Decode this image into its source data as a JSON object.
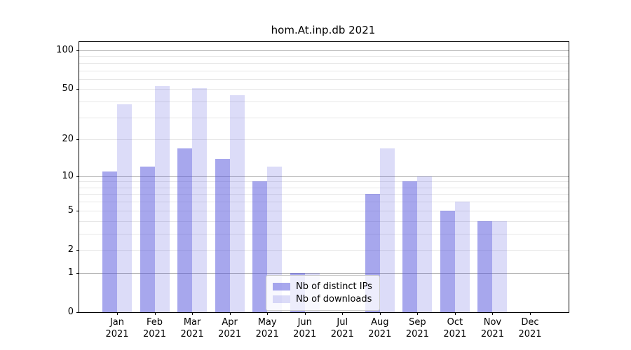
{
  "title": "hom.At.inp.db 2021",
  "chart_data": {
    "type": "bar",
    "title": "hom.At.inp.db 2021",
    "categories": [
      "Jan",
      "Feb",
      "Mar",
      "Apr",
      "May",
      "Jun",
      "Jul",
      "Aug",
      "Sep",
      "Oct",
      "Nov",
      "Dec"
    ],
    "year": "2021",
    "series": [
      {
        "name": "Nb of distinct IPs",
        "color": "rgba(80,80,220,0.5)",
        "values": [
          11,
          12,
          17,
          14,
          9,
          1,
          0,
          7,
          9,
          5,
          4,
          0
        ]
      },
      {
        "name": "Nb of downloads",
        "color": "rgba(80,80,220,0.2)",
        "values": [
          38,
          53,
          51,
          45,
          12,
          1,
          0,
          17,
          10,
          6,
          4,
          0
        ]
      }
    ],
    "ylabel": "",
    "xlabel": "",
    "yscale": "log10(1+value)",
    "ylim": [
      0,
      116
    ],
    "yticks": [
      100,
      50,
      20,
      10,
      5,
      2,
      1,
      0
    ],
    "major_gridlines": [
      100,
      10,
      1
    ],
    "minor_gridlines": [
      90,
      80,
      70,
      60,
      50,
      40,
      30,
      20,
      9,
      8,
      7,
      6,
      5,
      4,
      3,
      2
    ],
    "grid": true,
    "legend_position": "lower center",
    "colors": {
      "bar_distinct_ips_on_white": "#a8a8ee",
      "bar_downloads_on_white": "#dcdcf8",
      "major_grid": "#b0b0b0",
      "minor_grid": "#e7e7e7",
      "axis": "#000000",
      "legend_border": "#cccccc"
    }
  }
}
